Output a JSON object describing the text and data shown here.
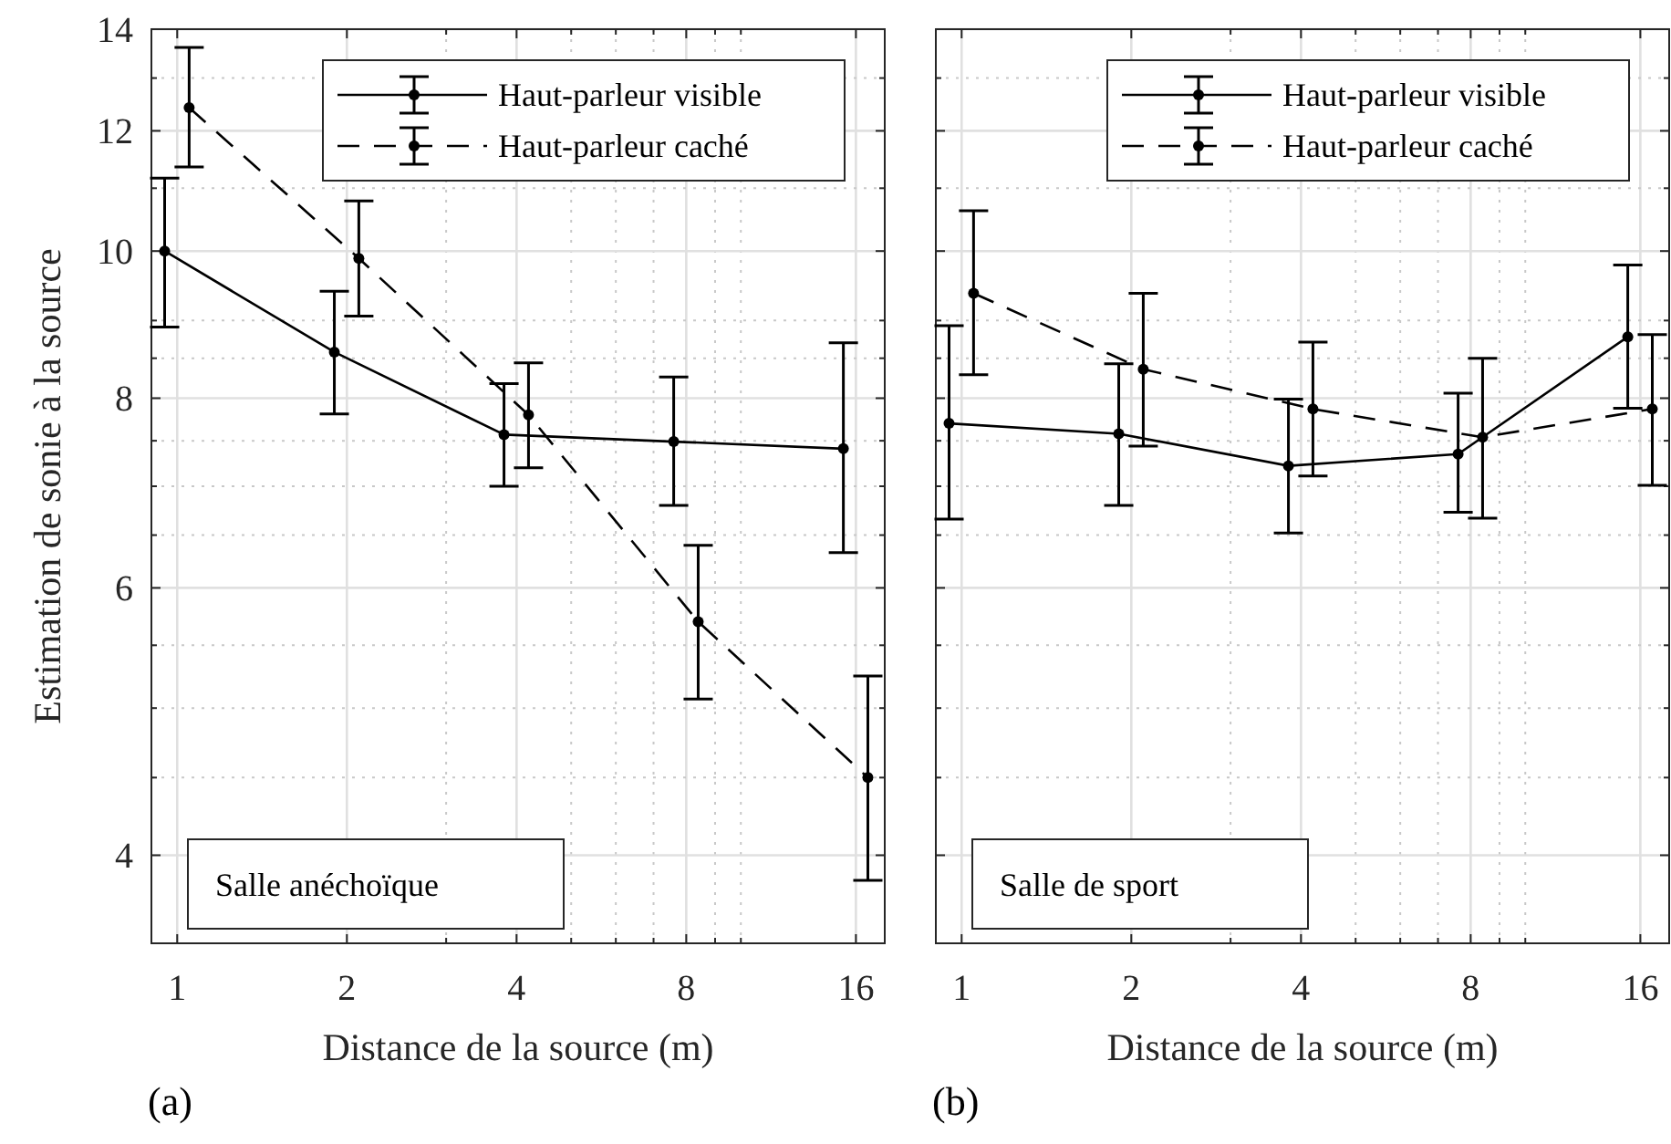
{
  "chart_data": [
    {
      "type": "line",
      "xlabel": "Distance de la source (m)",
      "ylabel": "Estimation de sonie à la source",
      "log": "xy",
      "grid": true,
      "legend": "top right",
      "marker": "circle",
      "xlim": [
        0.9,
        18
      ],
      "ylim": [
        3.5,
        14
      ],
      "xticks": [
        1,
        2,
        4,
        8,
        16,
        {
          "value": 3,
          "label": null
        },
        {
          "value": 5,
          "label": null
        },
        {
          "value": 6,
          "label": null
        },
        {
          "value": 7,
          "label": null
        },
        {
          "value": 9,
          "label": null
        },
        {
          "value": 10,
          "label": null
        }
      ],
      "yticks": [
        4,
        6,
        8,
        10,
        12,
        14,
        {
          "value": 4.5,
          "label": null
        },
        {
          "value": 5,
          "label": null
        },
        {
          "value": 5.5,
          "label": null
        },
        {
          "value": 6.5,
          "label": null
        },
        {
          "value": 7,
          "label": null
        },
        {
          "value": 7.5,
          "label": null
        },
        {
          "value": 8.5,
          "label": null
        },
        {
          "value": 9,
          "label": null
        },
        {
          "value": 11,
          "label": null
        },
        {
          "value": 13,
          "label": null
        }
      ],
      "series": [
        {
          "name": "Haut-parleur visible",
          "color": "#000000",
          "line_style": "solid",
          "x": [
            0.95,
            1.9,
            3.8,
            7.6,
            15.2
          ],
          "values": [
            10.0,
            8.58,
            7.57,
            7.49,
            7.41
          ],
          "errors": [
            [
              8.91,
              11.17
            ],
            [
              7.81,
              9.41
            ],
            [
              7.0,
              8.18
            ],
            [
              6.8,
              8.26
            ],
            [
              6.33,
              8.7
            ]
          ]
        },
        {
          "name": "Haut-parleur caché",
          "color": "#000000",
          "line_style": "dashed",
          "x": [
            1.05,
            2.1,
            4.2,
            8.4,
            16.8
          ],
          "values": [
            12.43,
            9.89,
            7.8,
            5.7,
            4.5
          ],
          "errors": [
            [
              11.36,
              13.62
            ],
            [
              9.06,
              10.79
            ],
            [
              7.2,
              8.44
            ],
            [
              5.07,
              6.4
            ],
            [
              3.85,
              5.25
            ]
          ]
        }
      ],
      "annotations": [
        "Salle anéchoïque",
        "(a)"
      ]
    },
    {
      "type": "line",
      "xlabel": "Distance de la source (m)",
      "log": "xy",
      "grid": true,
      "legend": "top right",
      "marker": "circle",
      "tick_labels": "x",
      "xlim": [
        0.9,
        18
      ],
      "ylim": [
        3.5,
        14
      ],
      "xticks": [
        1,
        2,
        4,
        8,
        16,
        {
          "value": 3,
          "label": null
        },
        {
          "value": 5,
          "label": null
        },
        {
          "value": 6,
          "label": null
        },
        {
          "value": 7,
          "label": null
        },
        {
          "value": 9,
          "label": null
        },
        {
          "value": 10,
          "label": null
        }
      ],
      "yticks": [
        4,
        6,
        8,
        10,
        12,
        14,
        {
          "value": 4.5,
          "label": null
        },
        {
          "value": 5,
          "label": null
        },
        {
          "value": 5.5,
          "label": null
        },
        {
          "value": 6.5,
          "label": null
        },
        {
          "value": 7,
          "label": null
        },
        {
          "value": 7.5,
          "label": null
        },
        {
          "value": 8.5,
          "label": null
        },
        {
          "value": 9,
          "label": null
        },
        {
          "value": 11,
          "label": null
        },
        {
          "value": 13,
          "label": null
        }
      ],
      "series": [
        {
          "name": "Haut-parleur visible",
          "color": "#000000",
          "line_style": "solid",
          "x": [
            0.95,
            1.9,
            3.8,
            7.6,
            15.2
          ],
          "values": [
            7.7,
            7.58,
            7.22,
            7.35,
            8.78
          ],
          "errors": [
            [
              6.66,
              8.93
            ],
            [
              6.8,
              8.43
            ],
            [
              6.52,
              7.99
            ],
            [
              6.73,
              8.06
            ],
            [
              7.88,
              9.79
            ]
          ]
        },
        {
          "name": "Haut-parleur caché",
          "color": "#000000",
          "line_style": "dashed",
          "x": [
            1.05,
            2.1,
            4.2,
            8.4,
            16.8
          ],
          "values": [
            9.38,
            8.36,
            7.87,
            7.54,
            7.87
          ],
          "errors": [
            [
              8.29,
              10.63
            ],
            [
              7.44,
              9.38
            ],
            [
              7.11,
              8.71
            ],
            [
              6.67,
              8.5
            ],
            [
              7.01,
              8.81
            ]
          ]
        }
      ],
      "annotations": [
        "Salle de sport",
        "(b)"
      ]
    }
  ]
}
